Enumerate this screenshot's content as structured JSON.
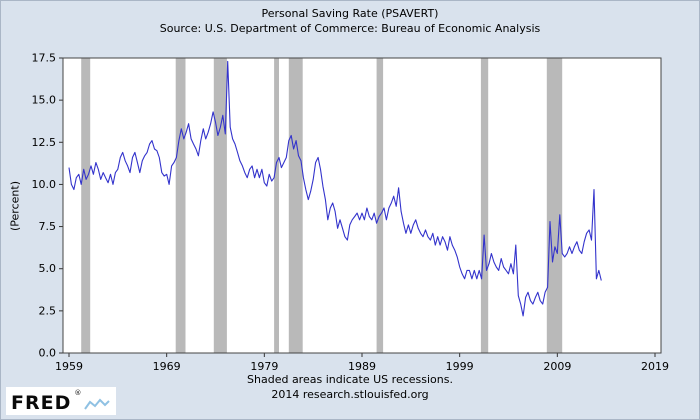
{
  "header": {
    "title": "Personal Saving Rate (PSAVERT)",
    "subtitle": "Source: U.S. Department of Commerce: Bureau of Economic Analysis"
  },
  "footer": {
    "note": "Shaded areas indicate US recessions.",
    "credit": "2014 research.stlouisfed.org"
  },
  "logo": {
    "text": "FRED",
    "reg": "®",
    "sparkline_icon": "fred-sparkline-icon"
  },
  "colors": {
    "background": "#d9e2ed",
    "plot_background": "#ffffff",
    "line": "#3333cc",
    "recession_band": "#b9b9b9",
    "frame": "#444444",
    "tick": "#333333",
    "text": "#000000",
    "logo_spark": "#8fc1e3"
  },
  "chart_data": {
    "type": "line",
    "title": "Personal Saving Rate (PSAVERT)",
    "xlabel": "",
    "ylabel": "(Percent)",
    "x_ticks": [
      1959,
      1969,
      1979,
      1989,
      1999,
      2009,
      2019
    ],
    "y_ticks": [
      0.0,
      2.5,
      5.0,
      7.5,
      10.0,
      12.5,
      15.0,
      17.5
    ],
    "xlim": [
      1958.4,
      2019.6
    ],
    "ylim": [
      0,
      17.5
    ],
    "grid": false,
    "legend": "none",
    "series_name": "Personal Saving Rate",
    "series_start_year": 1959.0,
    "series_step_years": 0.25,
    "values": [
      11.0,
      10.0,
      9.7,
      10.4,
      10.6,
      10.0,
      10.9,
      10.3,
      10.6,
      11.1,
      10.6,
      11.3,
      10.9,
      10.3,
      10.7,
      10.4,
      10.1,
      10.6,
      10.0,
      10.7,
      10.9,
      11.6,
      11.9,
      11.4,
      11.1,
      10.7,
      11.6,
      11.9,
      11.3,
      10.7,
      11.4,
      11.7,
      11.9,
      12.4,
      12.6,
      12.1,
      12.0,
      11.6,
      10.7,
      10.5,
      10.6,
      10.0,
      11.1,
      11.3,
      11.6,
      12.6,
      13.3,
      12.7,
      13.1,
      13.6,
      12.7,
      12.4,
      12.1,
      11.7,
      12.6,
      13.3,
      12.7,
      13.1,
      13.6,
      14.3,
      13.7,
      12.9,
      13.4,
      14.1,
      13.0,
      17.3,
      13.4,
      12.7,
      12.4,
      11.9,
      11.4,
      11.1,
      10.7,
      10.4,
      10.9,
      11.1,
      10.4,
      10.9,
      10.4,
      10.9,
      10.1,
      9.9,
      10.6,
      10.2,
      10.4,
      11.3,
      11.6,
      11.0,
      11.3,
      11.6,
      12.6,
      12.9,
      12.1,
      12.6,
      11.7,
      11.4,
      10.4,
      9.7,
      9.1,
      9.6,
      10.3,
      11.3,
      11.6,
      10.9,
      9.9,
      9.1,
      7.9,
      8.6,
      8.9,
      8.4,
      7.4,
      7.9,
      7.4,
      6.9,
      6.7,
      7.6,
      7.9,
      8.1,
      8.3,
      7.9,
      8.3,
      7.9,
      8.6,
      8.1,
      7.9,
      8.3,
      7.7,
      8.1,
      8.3,
      8.6,
      7.9,
      8.6,
      8.9,
      9.3,
      8.7,
      9.8,
      8.4,
      7.7,
      7.1,
      7.6,
      7.1,
      7.6,
      7.9,
      7.4,
      7.1,
      6.9,
      7.3,
      6.9,
      6.7,
      7.1,
      6.4,
      6.9,
      6.4,
      6.9,
      6.6,
      6.1,
      6.9,
      6.4,
      6.1,
      5.7,
      5.1,
      4.7,
      4.4,
      4.9,
      4.9,
      4.4,
      4.9,
      4.4,
      4.9,
      4.4,
      7.0,
      4.9,
      5.3,
      5.9,
      5.4,
      5.1,
      4.9,
      5.6,
      5.1,
      4.9,
      4.7,
      5.3,
      4.7,
      6.4,
      3.4,
      2.9,
      2.2,
      3.3,
      3.6,
      3.1,
      2.9,
      3.3,
      3.6,
      3.1,
      2.9,
      3.6,
      3.9,
      7.8,
      5.4,
      6.3,
      5.9,
      8.2,
      5.9,
      5.7,
      5.9,
      6.3,
      5.9,
      6.3,
      6.6,
      6.1,
      5.9,
      6.6,
      7.1,
      7.3,
      6.7,
      9.7,
      4.4,
      4.9,
      4.3
    ],
    "recessions": [
      [
        1960.25,
        1961.17
      ],
      [
        1969.92,
        1970.92
      ],
      [
        1973.83,
        1975.17
      ],
      [
        1980.0,
        1980.5
      ],
      [
        1981.5,
        1982.92
      ],
      [
        1990.5,
        1991.17
      ],
      [
        2001.17,
        2001.92
      ],
      [
        2007.92,
        2009.5
      ]
    ]
  }
}
